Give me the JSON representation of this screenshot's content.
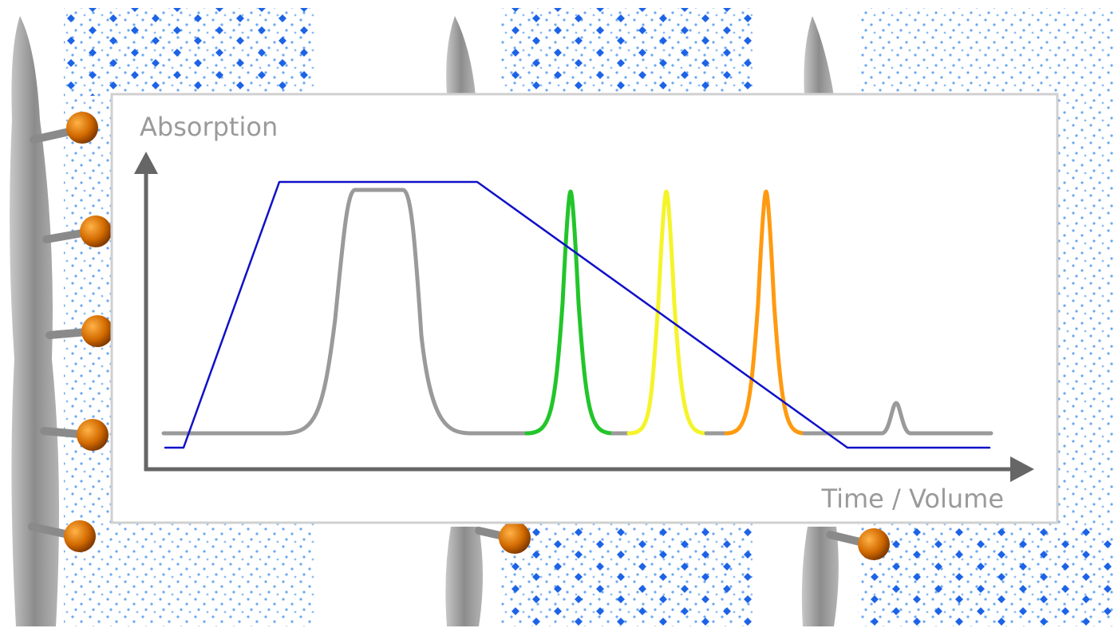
{
  "axis_labels": {
    "y": "Absorption",
    "x": "Time / Volume"
  }
}
